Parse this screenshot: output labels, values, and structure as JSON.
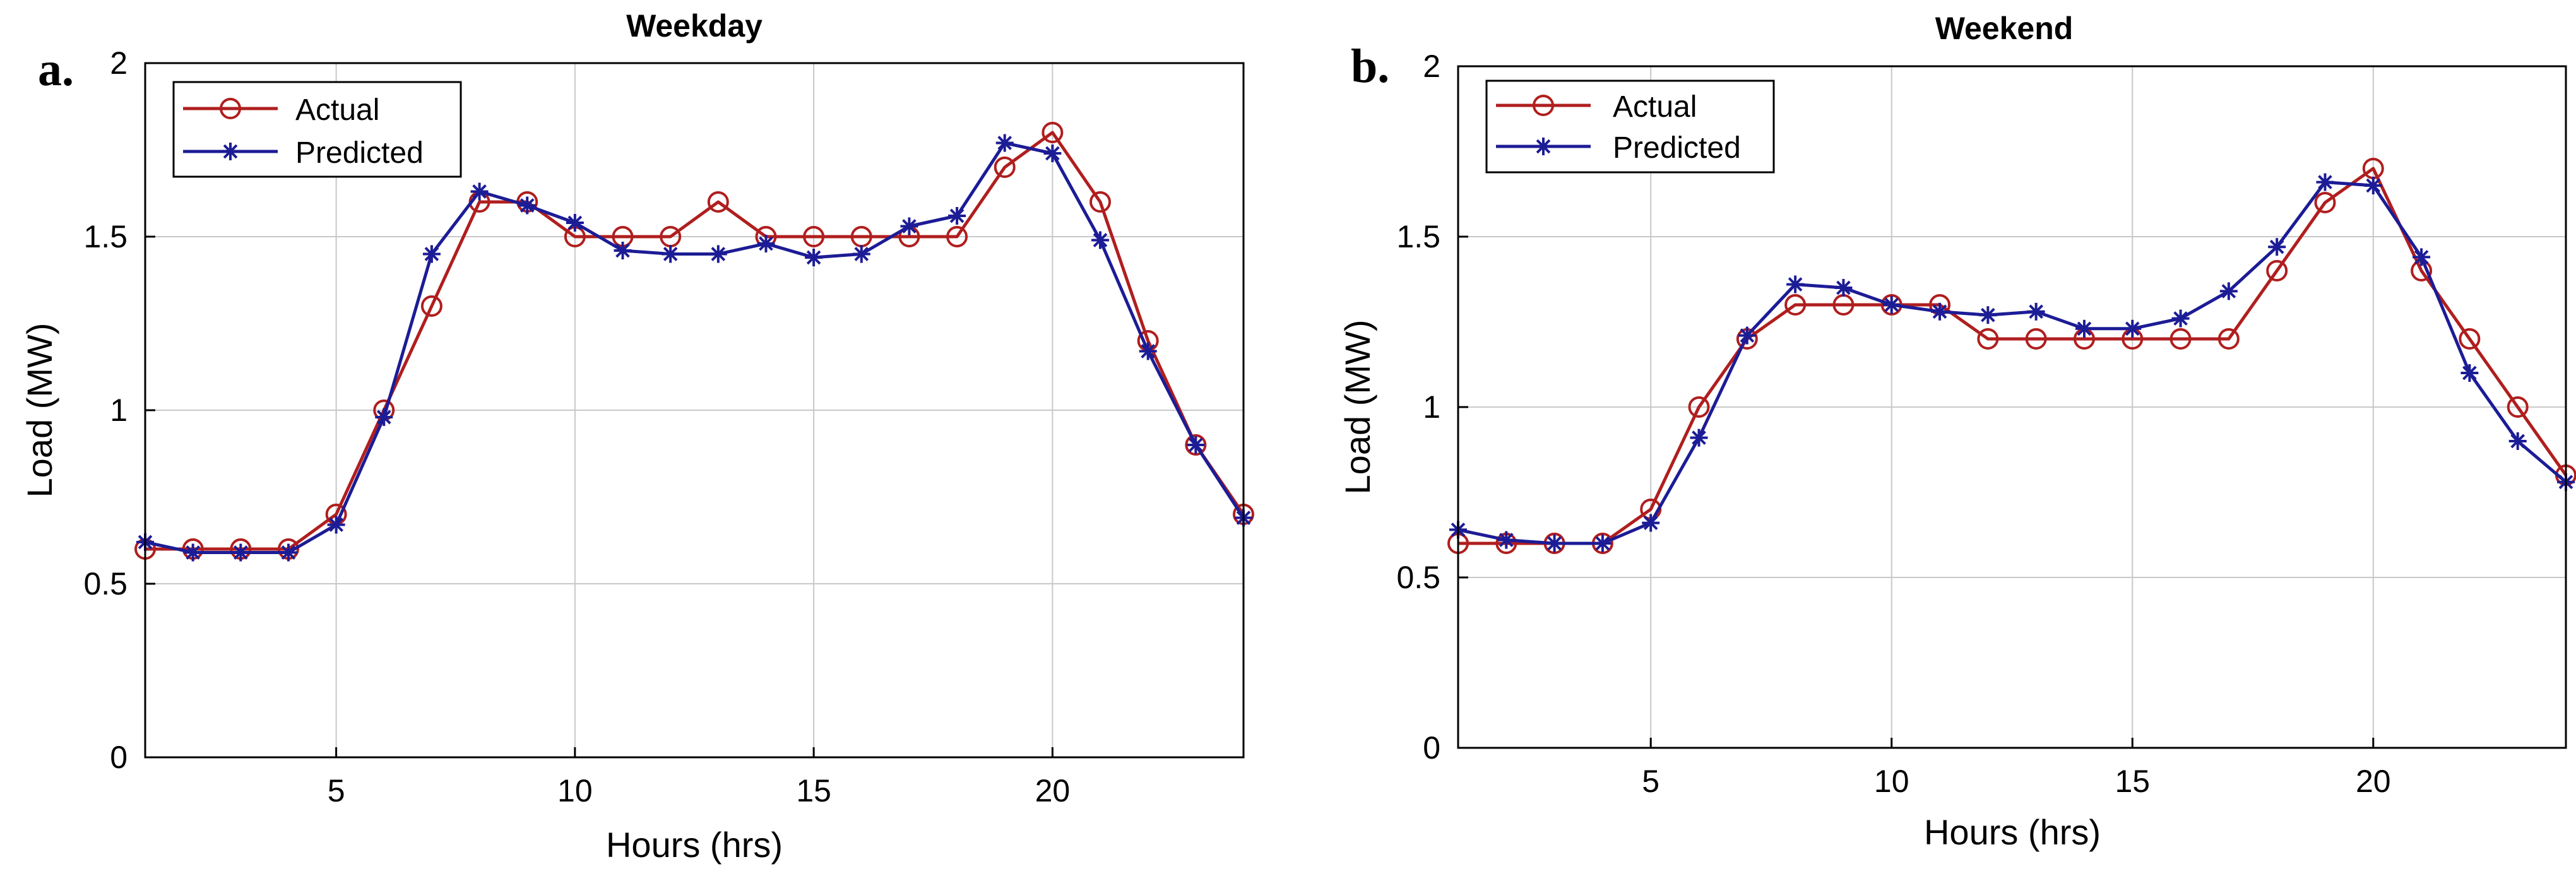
{
  "chart_data": [
    {
      "panel_label": "a.",
      "type": "line",
      "title": "Weekday",
      "xlabel": "Hours (hrs)",
      "ylabel": "Load (MW)",
      "xlim": [
        1,
        24
      ],
      "ylim": [
        0,
        2
      ],
      "xticks": [
        5,
        10,
        15,
        20
      ],
      "yticks": [
        0,
        0.5,
        1,
        1.5,
        2
      ],
      "grid": true,
      "legend_position": "top-left",
      "x": [
        1,
        2,
        3,
        4,
        5,
        6,
        7,
        8,
        9,
        10,
        11,
        12,
        13,
        14,
        15,
        16,
        17,
        18,
        19,
        20,
        21,
        22,
        23,
        24
      ],
      "series": [
        {
          "name": "Actual",
          "marker": "circle",
          "color": "#b01e1e",
          "values": [
            0.6,
            0.6,
            0.6,
            0.6,
            0.7,
            1.0,
            1.3,
            1.6,
            1.6,
            1.5,
            1.5,
            1.5,
            1.6,
            1.5,
            1.5,
            1.5,
            1.5,
            1.5,
            1.7,
            1.8,
            1.6,
            1.2,
            0.9,
            0.7
          ]
        },
        {
          "name": "Predicted",
          "marker": "star",
          "color": "#1c1c96",
          "values": [
            0.62,
            0.59,
            0.59,
            0.59,
            0.67,
            0.98,
            1.45,
            1.63,
            1.59,
            1.54,
            1.46,
            1.45,
            1.45,
            1.48,
            1.44,
            1.45,
            1.53,
            1.56,
            1.77,
            1.74,
            1.49,
            1.17,
            0.9,
            0.69
          ]
        }
      ]
    },
    {
      "panel_label": "b.",
      "type": "line",
      "title": "Weekend",
      "xlabel": "Hours (hrs)",
      "ylabel": "Load (MW)",
      "xlim": [
        1,
        24
      ],
      "ylim": [
        0,
        2
      ],
      "xticks": [
        5,
        10,
        15,
        20
      ],
      "yticks": [
        0,
        0.5,
        1,
        1.5,
        2
      ],
      "grid": true,
      "legend_position": "top-left",
      "x": [
        1,
        2,
        3,
        4,
        5,
        6,
        7,
        8,
        9,
        10,
        11,
        12,
        13,
        14,
        15,
        16,
        17,
        18,
        19,
        20,
        21,
        22,
        23,
        24
      ],
      "series": [
        {
          "name": "Actual",
          "marker": "circle",
          "color": "#b01e1e",
          "values": [
            0.6,
            0.6,
            0.6,
            0.6,
            0.7,
            1.0,
            1.2,
            1.3,
            1.3,
            1.3,
            1.3,
            1.2,
            1.2,
            1.2,
            1.2,
            1.2,
            1.2,
            1.4,
            1.6,
            1.7,
            1.4,
            1.2,
            1.0,
            0.8
          ]
        },
        {
          "name": "Predicted",
          "marker": "star",
          "color": "#1c1c96",
          "values": [
            0.64,
            0.61,
            0.6,
            0.6,
            0.66,
            0.91,
            1.21,
            1.36,
            1.35,
            1.3,
            1.28,
            1.27,
            1.28,
            1.23,
            1.23,
            1.26,
            1.34,
            1.47,
            1.66,
            1.65,
            1.44,
            1.1,
            0.9,
            0.78
          ]
        }
      ]
    }
  ]
}
